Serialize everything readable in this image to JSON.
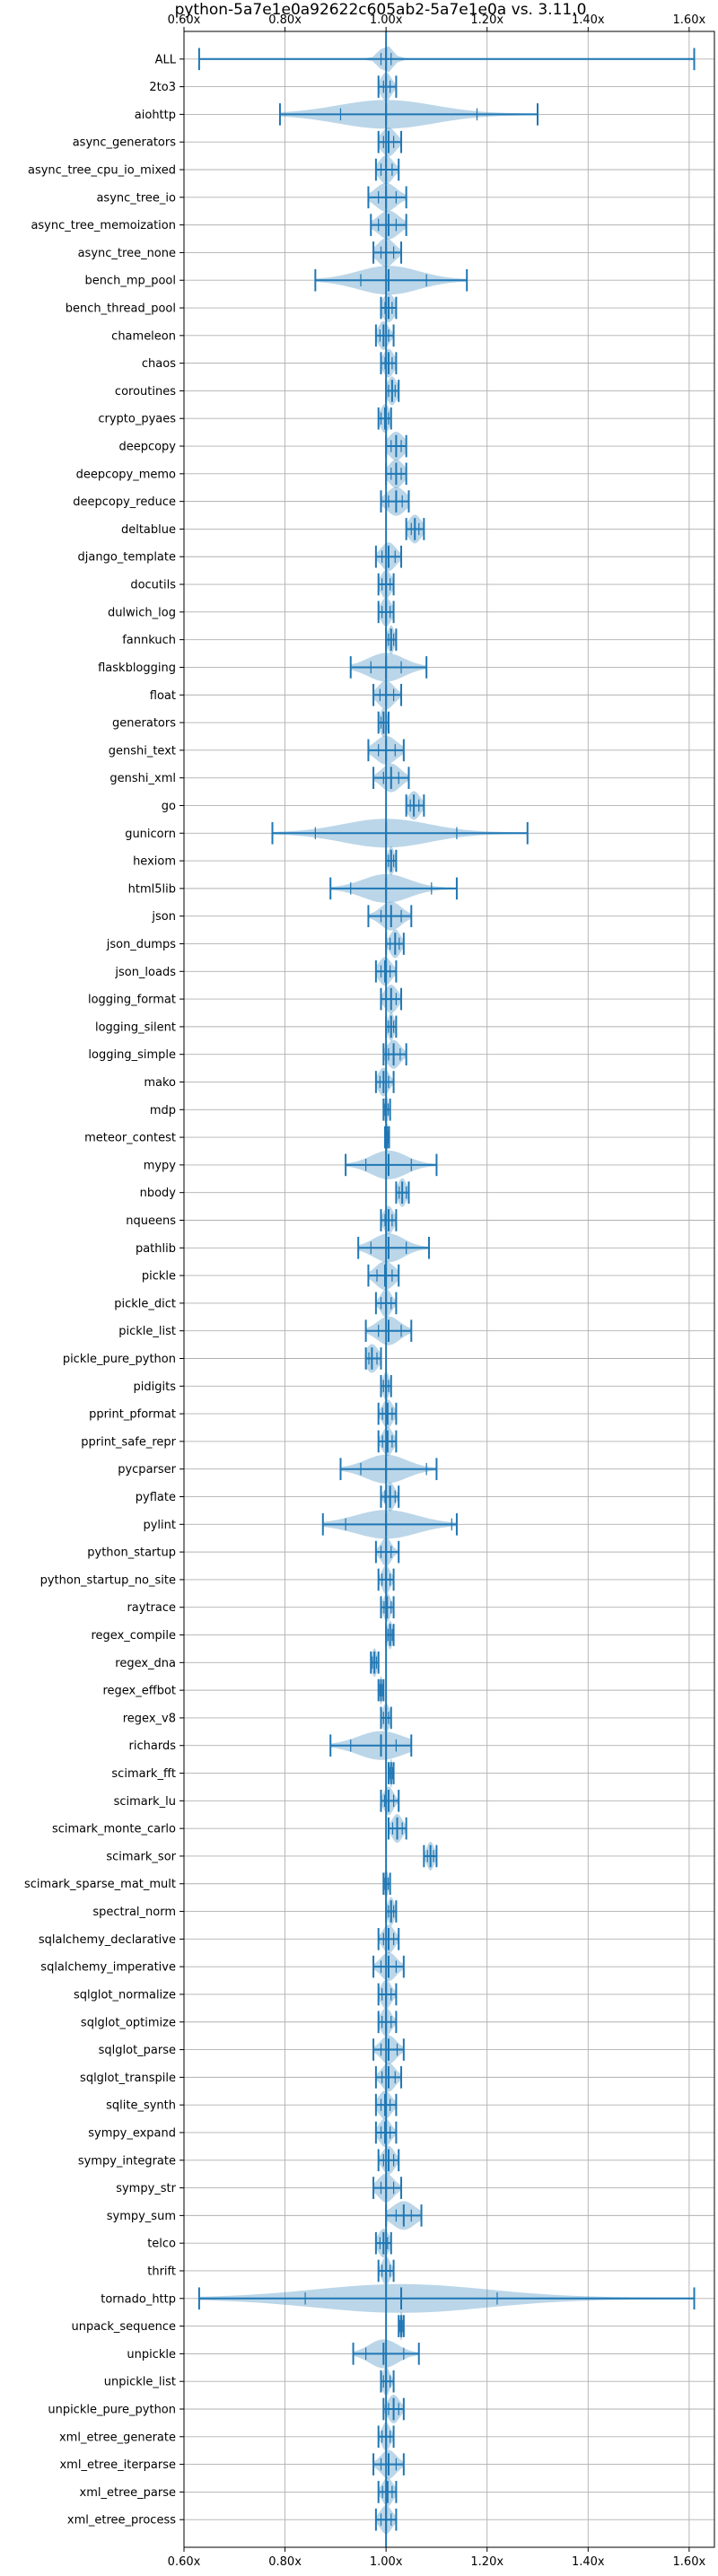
{
  "chart_data": {
    "type": "violin",
    "title": "python-5a7e1e0a92622c605ab2-5a7e1e0a vs. 3.11.0",
    "xlabel": "",
    "ylabel": "",
    "xlim": [
      0.6,
      1.65
    ],
    "xticks": [
      0.6,
      0.8,
      1.0,
      1.2,
      1.4,
      1.6
    ],
    "xtick_labels": [
      "0.60x",
      "0.80x",
      "1.00x",
      "1.20x",
      "1.40x",
      "1.60x"
    ],
    "tick_positions": [
      "top",
      "bottom"
    ],
    "reference_line": 1.0,
    "grid": true,
    "colors": {
      "series": "#1f77b4",
      "grid": "#b0b0b0",
      "axis": "#000000"
    },
    "benchmarks": [
      {
        "name": "ALL",
        "min": 0.63,
        "max": 1.61,
        "median": 1.0,
        "q1": 0.99,
        "q3": 1.01,
        "spread": 0.012
      },
      {
        "name": "2to3",
        "min": 0.985,
        "max": 1.02,
        "median": 1.0,
        "q1": 0.995,
        "q3": 1.008,
        "spread": 0.01
      },
      {
        "name": "aiohttp",
        "min": 0.79,
        "max": 1.3,
        "median": 1.0,
        "q1": 0.91,
        "q3": 1.18,
        "spread": 0.095
      },
      {
        "name": "async_generators",
        "min": 0.985,
        "max": 1.03,
        "median": 1.005,
        "q1": 0.995,
        "q3": 1.015,
        "spread": 0.014
      },
      {
        "name": "async_tree_cpu_io_mixed",
        "min": 0.98,
        "max": 1.025,
        "median": 1.0,
        "q1": 0.99,
        "q3": 1.012,
        "spread": 0.013
      },
      {
        "name": "async_tree_io",
        "min": 0.965,
        "max": 1.04,
        "median": 1.0,
        "q1": 0.985,
        "q3": 1.02,
        "spread": 0.02
      },
      {
        "name": "async_tree_memoization",
        "min": 0.97,
        "max": 1.04,
        "median": 1.005,
        "q1": 0.985,
        "q3": 1.02,
        "spread": 0.02
      },
      {
        "name": "async_tree_none",
        "min": 0.975,
        "max": 1.03,
        "median": 1.0,
        "q1": 0.99,
        "q3": 1.015,
        "spread": 0.016
      },
      {
        "name": "bench_mp_pool",
        "min": 0.86,
        "max": 1.16,
        "median": 1.005,
        "q1": 0.95,
        "q3": 1.08,
        "spread": 0.06
      },
      {
        "name": "bench_thread_pool",
        "min": 0.99,
        "max": 1.02,
        "median": 1.005,
        "q1": 0.998,
        "q3": 1.012,
        "spread": 0.012
      },
      {
        "name": "chameleon",
        "min": 0.98,
        "max": 1.015,
        "median": 0.995,
        "q1": 0.988,
        "q3": 1.005,
        "spread": 0.01
      },
      {
        "name": "chaos",
        "min": 0.99,
        "max": 1.02,
        "median": 1.005,
        "q1": 0.998,
        "q3": 1.012,
        "spread": 0.01
      },
      {
        "name": "coroutines",
        "min": 1.0,
        "max": 1.025,
        "median": 1.012,
        "q1": 1.005,
        "q3": 1.018,
        "spread": 0.009
      },
      {
        "name": "crypto_pyaes",
        "min": 0.985,
        "max": 1.01,
        "median": 0.998,
        "q1": 0.99,
        "q3": 1.005,
        "spread": 0.009
      },
      {
        "name": "deepcopy",
        "min": 1.0,
        "max": 1.04,
        "median": 1.02,
        "q1": 1.01,
        "q3": 1.03,
        "spread": 0.015
      },
      {
        "name": "deepcopy_memo",
        "min": 1.0,
        "max": 1.04,
        "median": 1.02,
        "q1": 1.01,
        "q3": 1.03,
        "spread": 0.014
      },
      {
        "name": "deepcopy_reduce",
        "min": 0.99,
        "max": 1.045,
        "median": 1.02,
        "q1": 1.005,
        "q3": 1.032,
        "spread": 0.018
      },
      {
        "name": "deltablue",
        "min": 1.04,
        "max": 1.075,
        "median": 1.057,
        "q1": 1.05,
        "q3": 1.065,
        "spread": 0.012
      },
      {
        "name": "django_template",
        "min": 0.98,
        "max": 1.03,
        "median": 1.005,
        "q1": 0.992,
        "q3": 1.018,
        "spread": 0.014
      },
      {
        "name": "docutils",
        "min": 0.985,
        "max": 1.015,
        "median": 1.0,
        "q1": 0.992,
        "q3": 1.008,
        "spread": 0.01
      },
      {
        "name": "dulwich_log",
        "min": 0.985,
        "max": 1.015,
        "median": 1.0,
        "q1": 0.992,
        "q3": 1.008,
        "spread": 0.01
      },
      {
        "name": "fannkuch",
        "min": 1.0,
        "max": 1.02,
        "median": 1.01,
        "q1": 1.005,
        "q3": 1.015,
        "spread": 0.006
      },
      {
        "name": "flaskblogging",
        "min": 0.93,
        "max": 1.08,
        "median": 1.0,
        "q1": 0.97,
        "q3": 1.03,
        "spread": 0.035
      },
      {
        "name": "float",
        "min": 0.975,
        "max": 1.03,
        "median": 1.0,
        "q1": 0.988,
        "q3": 1.015,
        "spread": 0.015
      },
      {
        "name": "generators",
        "min": 0.985,
        "max": 1.005,
        "median": 0.995,
        "q1": 0.99,
        "q3": 1.0,
        "spread": 0.007
      },
      {
        "name": "genshi_text",
        "min": 0.965,
        "max": 1.035,
        "median": 1.0,
        "q1": 0.985,
        "q3": 1.018,
        "spread": 0.02
      },
      {
        "name": "genshi_xml",
        "min": 0.975,
        "max": 1.045,
        "median": 1.01,
        "q1": 0.995,
        "q3": 1.025,
        "spread": 0.018
      },
      {
        "name": "go",
        "min": 1.04,
        "max": 1.075,
        "median": 1.055,
        "q1": 1.048,
        "q3": 1.065,
        "spread": 0.012
      },
      {
        "name": "gunicorn",
        "min": 0.775,
        "max": 1.28,
        "median": 1.0,
        "q1": 0.86,
        "q3": 1.14,
        "spread": 0.085
      },
      {
        "name": "hexiom",
        "min": 1.0,
        "max": 1.02,
        "median": 1.01,
        "q1": 1.005,
        "q3": 1.015,
        "spread": 0.006
      },
      {
        "name": "html5lib",
        "min": 0.89,
        "max": 1.14,
        "median": 1.0,
        "q1": 0.93,
        "q3": 1.09,
        "spread": 0.045
      },
      {
        "name": "json",
        "min": 0.965,
        "max": 1.05,
        "median": 1.01,
        "q1": 0.99,
        "q3": 1.03,
        "spread": 0.02
      },
      {
        "name": "json_dumps",
        "min": 1.0,
        "max": 1.035,
        "median": 1.018,
        "q1": 1.008,
        "q3": 1.026,
        "spread": 0.01
      },
      {
        "name": "json_loads",
        "min": 0.98,
        "max": 1.02,
        "median": 0.998,
        "q1": 0.99,
        "q3": 1.008,
        "spread": 0.012
      },
      {
        "name": "logging_format",
        "min": 0.99,
        "max": 1.03,
        "median": 1.01,
        "q1": 1.0,
        "q3": 1.02,
        "spread": 0.012
      },
      {
        "name": "logging_silent",
        "min": 1.0,
        "max": 1.02,
        "median": 1.01,
        "q1": 1.005,
        "q3": 1.015,
        "spread": 0.006
      },
      {
        "name": "logging_simple",
        "min": 0.995,
        "max": 1.04,
        "median": 1.015,
        "q1": 1.005,
        "q3": 1.028,
        "spread": 0.013
      },
      {
        "name": "mako",
        "min": 0.98,
        "max": 1.015,
        "median": 0.995,
        "q1": 0.988,
        "q3": 1.005,
        "spread": 0.01
      },
      {
        "name": "mdp",
        "min": 0.995,
        "max": 1.008,
        "median": 1.0,
        "q1": 0.998,
        "q3": 1.004,
        "spread": 0.004
      },
      {
        "name": "meteor_contest",
        "min": 0.998,
        "max": 1.006,
        "median": 1.002,
        "q1": 1.0,
        "q3": 1.004,
        "spread": 0.003
      },
      {
        "name": "mypy",
        "min": 0.92,
        "max": 1.1,
        "median": 1.005,
        "q1": 0.96,
        "q3": 1.05,
        "spread": 0.035
      },
      {
        "name": "nbody",
        "min": 1.02,
        "max": 1.045,
        "median": 1.032,
        "q1": 1.026,
        "q3": 1.04,
        "spread": 0.008
      },
      {
        "name": "nqueens",
        "min": 0.99,
        "max": 1.02,
        "median": 1.005,
        "q1": 0.998,
        "q3": 1.012,
        "spread": 0.009
      },
      {
        "name": "pathlib",
        "min": 0.945,
        "max": 1.085,
        "median": 1.005,
        "q1": 0.97,
        "q3": 1.04,
        "spread": 0.03
      },
      {
        "name": "pickle",
        "min": 0.965,
        "max": 1.025,
        "median": 0.998,
        "q1": 0.982,
        "q3": 1.012,
        "spread": 0.018
      },
      {
        "name": "pickle_dict",
        "min": 0.98,
        "max": 1.02,
        "median": 1.0,
        "q1": 0.99,
        "q3": 1.01,
        "spread": 0.01
      },
      {
        "name": "pickle_list",
        "min": 0.96,
        "max": 1.05,
        "median": 1.005,
        "q1": 0.985,
        "q3": 1.03,
        "spread": 0.022
      },
      {
        "name": "pickle_pure_python",
        "min": 0.96,
        "max": 0.99,
        "median": 0.972,
        "q1": 0.966,
        "q3": 0.982,
        "spread": 0.012
      },
      {
        "name": "pidigits",
        "min": 0.99,
        "max": 1.01,
        "median": 1.0,
        "q1": 0.995,
        "q3": 1.005,
        "spread": 0.006
      },
      {
        "name": "pprint_pformat",
        "min": 0.985,
        "max": 1.02,
        "median": 1.003,
        "q1": 0.993,
        "q3": 1.012,
        "spread": 0.01
      },
      {
        "name": "pprint_safe_repr",
        "min": 0.985,
        "max": 1.02,
        "median": 1.003,
        "q1": 0.993,
        "q3": 1.012,
        "spread": 0.01
      },
      {
        "name": "pycparser",
        "min": 0.91,
        "max": 1.1,
        "median": 1.0,
        "q1": 0.95,
        "q3": 1.08,
        "spread": 0.04
      },
      {
        "name": "pyflate",
        "min": 0.99,
        "max": 1.025,
        "median": 1.008,
        "q1": 0.998,
        "q3": 1.018,
        "spread": 0.009
      },
      {
        "name": "pylint",
        "min": 0.875,
        "max": 1.14,
        "median": 1.0,
        "q1": 0.92,
        "q3": 1.13,
        "spread": 0.06
      },
      {
        "name": "python_startup",
        "min": 0.98,
        "max": 1.025,
        "median": 1.0,
        "q1": 0.99,
        "q3": 1.01,
        "spread": 0.01
      },
      {
        "name": "python_startup_no_site",
        "min": 0.985,
        "max": 1.015,
        "median": 1.0,
        "q1": 0.992,
        "q3": 1.008,
        "spread": 0.008
      },
      {
        "name": "raytrace",
        "min": 0.99,
        "max": 1.015,
        "median": 1.002,
        "q1": 0.996,
        "q3": 1.01,
        "spread": 0.007
      },
      {
        "name": "regex_compile",
        "min": 1.0,
        "max": 1.015,
        "median": 1.008,
        "q1": 1.004,
        "q3": 1.012,
        "spread": 0.005
      },
      {
        "name": "regex_dna",
        "min": 0.97,
        "max": 0.985,
        "median": 0.977,
        "q1": 0.973,
        "q3": 0.981,
        "spread": 0.005
      },
      {
        "name": "regex_effbot",
        "min": 0.985,
        "max": 0.995,
        "median": 0.99,
        "q1": 0.988,
        "q3": 0.993,
        "spread": 0.003
      },
      {
        "name": "regex_v8",
        "min": 0.99,
        "max": 1.01,
        "median": 1.0,
        "q1": 0.995,
        "q3": 1.005,
        "spread": 0.007
      },
      {
        "name": "richards",
        "min": 0.89,
        "max": 1.05,
        "median": 0.99,
        "q1": 0.93,
        "q3": 1.02,
        "spread": 0.045
      },
      {
        "name": "scimark_fft",
        "min": 1.005,
        "max": 1.015,
        "median": 1.01,
        "q1": 1.007,
        "q3": 1.013,
        "spread": 0.003
      },
      {
        "name": "scimark_lu",
        "min": 0.99,
        "max": 1.025,
        "median": 1.005,
        "q1": 0.997,
        "q3": 1.015,
        "spread": 0.009
      },
      {
        "name": "scimark_monte_carlo",
        "min": 1.005,
        "max": 1.04,
        "median": 1.022,
        "q1": 1.013,
        "q3": 1.032,
        "spread": 0.01
      },
      {
        "name": "scimark_sor",
        "min": 1.075,
        "max": 1.1,
        "median": 1.088,
        "q1": 1.082,
        "q3": 1.094,
        "spread": 0.007
      },
      {
        "name": "scimark_sparse_mat_mult",
        "min": 0.995,
        "max": 1.008,
        "median": 1.0,
        "q1": 0.998,
        "q3": 1.004,
        "spread": 0.004
      },
      {
        "name": "spectral_norm",
        "min": 1.0,
        "max": 1.02,
        "median": 1.01,
        "q1": 1.005,
        "q3": 1.015,
        "spread": 0.006
      },
      {
        "name": "sqlalchemy_declarative",
        "min": 0.985,
        "max": 1.025,
        "median": 1.005,
        "q1": 0.995,
        "q3": 1.015,
        "spread": 0.011
      },
      {
        "name": "sqlalchemy_imperative",
        "min": 0.975,
        "max": 1.035,
        "median": 1.005,
        "q1": 0.99,
        "q3": 1.02,
        "spread": 0.015
      },
      {
        "name": "sqlglot_normalize",
        "min": 0.985,
        "max": 1.02,
        "median": 1.0,
        "q1": 0.992,
        "q3": 1.01,
        "spread": 0.01
      },
      {
        "name": "sqlglot_optimize",
        "min": 0.985,
        "max": 1.02,
        "median": 1.0,
        "q1": 0.992,
        "q3": 1.01,
        "spread": 0.01
      },
      {
        "name": "sqlglot_parse",
        "min": 0.975,
        "max": 1.035,
        "median": 1.005,
        "q1": 0.99,
        "q3": 1.022,
        "spread": 0.015
      },
      {
        "name": "sqlglot_transpile",
        "min": 0.98,
        "max": 1.03,
        "median": 1.005,
        "q1": 0.992,
        "q3": 1.018,
        "spread": 0.013
      },
      {
        "name": "sqlite_synth",
        "min": 0.98,
        "max": 1.02,
        "median": 0.998,
        "q1": 0.99,
        "q3": 1.008,
        "spread": 0.012
      },
      {
        "name": "sympy_expand",
        "min": 0.98,
        "max": 1.02,
        "median": 0.998,
        "q1": 0.99,
        "q3": 1.008,
        "spread": 0.011
      },
      {
        "name": "sympy_integrate",
        "min": 0.985,
        "max": 1.025,
        "median": 1.005,
        "q1": 0.995,
        "q3": 1.015,
        "spread": 0.011
      },
      {
        "name": "sympy_str",
        "min": 0.975,
        "max": 1.03,
        "median": 1.0,
        "q1": 0.99,
        "q3": 1.015,
        "spread": 0.015
      },
      {
        "name": "sympy_sum",
        "min": 1.0,
        "max": 1.07,
        "median": 1.035,
        "q1": 1.02,
        "q3": 1.05,
        "spread": 0.022
      },
      {
        "name": "telco",
        "min": 0.98,
        "max": 1.01,
        "median": 0.995,
        "q1": 0.988,
        "q3": 1.003,
        "spread": 0.01
      },
      {
        "name": "thrift",
        "min": 0.985,
        "max": 1.015,
        "median": 1.0,
        "q1": 0.992,
        "q3": 1.008,
        "spread": 0.008
      },
      {
        "name": "tornado_http",
        "min": 0.63,
        "max": 1.61,
        "median": 1.03,
        "q1": 0.84,
        "q3": 1.22,
        "spread": 0.17
      },
      {
        "name": "unpack_sequence",
        "min": 1.025,
        "max": 1.035,
        "median": 1.03,
        "q1": 1.027,
        "q3": 1.033,
        "spread": 0.003
      },
      {
        "name": "unpickle",
        "min": 0.935,
        "max": 1.065,
        "median": 0.995,
        "q1": 0.96,
        "q3": 1.035,
        "spread": 0.028
      },
      {
        "name": "unpickle_list",
        "min": 0.99,
        "max": 1.015,
        "median": 1.0,
        "q1": 0.995,
        "q3": 1.008,
        "spread": 0.007
      },
      {
        "name": "unpickle_pure_python",
        "min": 0.995,
        "max": 1.035,
        "median": 1.015,
        "q1": 1.005,
        "q3": 1.025,
        "spread": 0.011
      },
      {
        "name": "xml_etree_generate",
        "min": 0.985,
        "max": 1.015,
        "median": 1.0,
        "q1": 0.992,
        "q3": 1.008,
        "spread": 0.008
      },
      {
        "name": "xml_etree_iterparse",
        "min": 0.975,
        "max": 1.035,
        "median": 1.005,
        "q1": 0.99,
        "q3": 1.02,
        "spread": 0.015
      },
      {
        "name": "xml_etree_parse",
        "min": 0.985,
        "max": 1.02,
        "median": 1.003,
        "q1": 0.993,
        "q3": 1.012,
        "spread": 0.01
      },
      {
        "name": "xml_etree_process",
        "min": 0.98,
        "max": 1.02,
        "median": 1.0,
        "q1": 0.99,
        "q3": 1.01,
        "spread": 0.011
      }
    ]
  }
}
